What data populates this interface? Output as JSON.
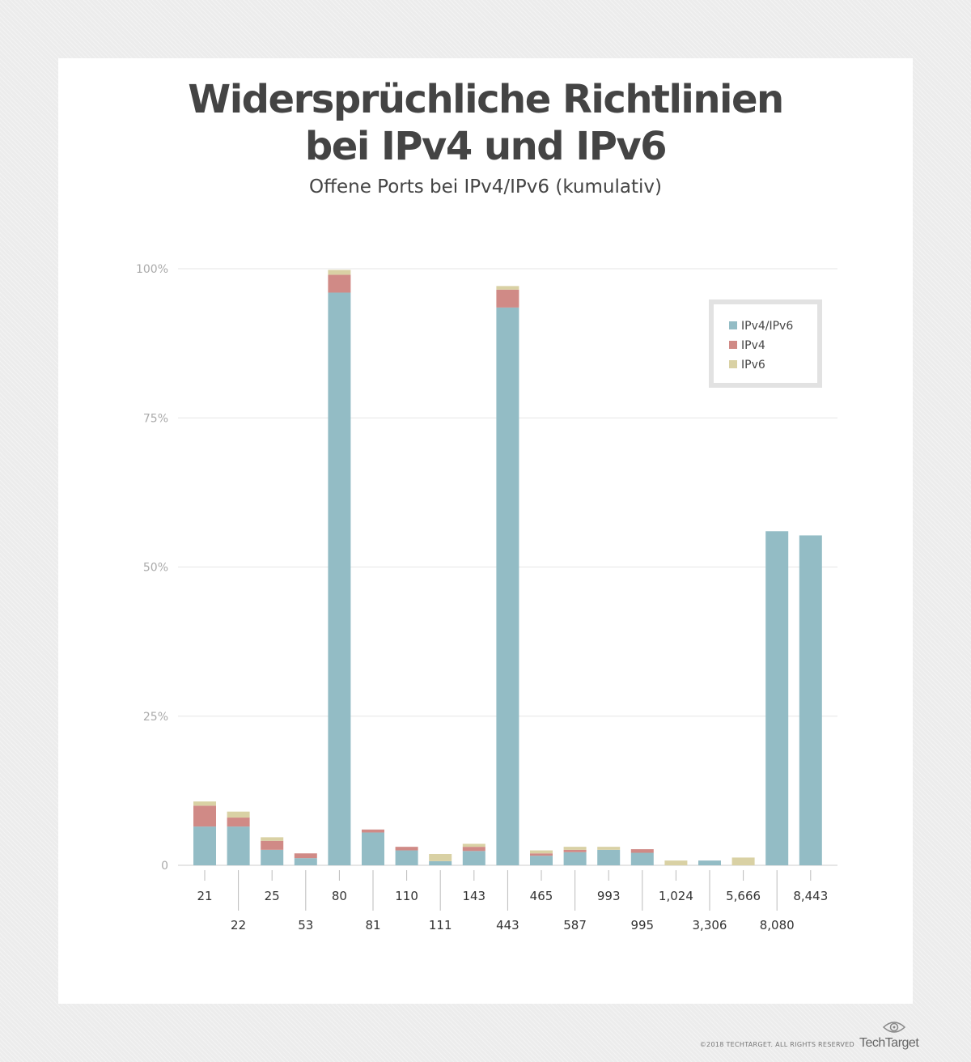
{
  "title_line1": "Widersprüchliche Richtlinien",
  "title_line2": "bei IPv4 und IPv6",
  "subtitle": "Offene Ports bei IPv4/IPv6 (kumulativ)",
  "footer": "©2018 TECHTARGET. ALL RIGHTS RESERVED",
  "brand": "TechTarget",
  "brand_icon": "eye-logo-icon",
  "colors": {
    "ipv4ipv6": "#93bcc5",
    "ipv4": "#d08a86",
    "ipv6": "#d9d1a4",
    "grid": "#e6e6e6",
    "axis": "#cccccc"
  },
  "chart_data": {
    "type": "bar",
    "stacked": true,
    "title": "Widersprüchliche Richtlinien bei IPv4 und IPv6",
    "subtitle": "Offene Ports bei IPv4/IPv6 (kumulativ)",
    "xlabel": "",
    "ylabel": "",
    "ylim": [
      0,
      100
    ],
    "yticks": [
      {
        "value": 0,
        "label": "0"
      },
      {
        "value": 25,
        "label": "25%"
      },
      {
        "value": 50,
        "label": "50%"
      },
      {
        "value": 75,
        "label": "75%"
      },
      {
        "value": 100,
        "label": "100%"
      }
    ],
    "grid": true,
    "legend_position": "top-right",
    "categories": [
      "21",
      "22",
      "25",
      "53",
      "80",
      "81",
      "110",
      "111",
      "143",
      "443",
      "465",
      "587",
      "993",
      "995",
      "1,024",
      "3,306",
      "5,666",
      "8,080",
      "8,443"
    ],
    "series": [
      {
        "name": "IPv4/IPv6",
        "color_key": "ipv4ipv6",
        "values": [
          6.5,
          6.5,
          2.6,
          1.2,
          96.0,
          5.5,
          2.5,
          0.7,
          2.4,
          93.5,
          1.6,
          2.2,
          2.6,
          2.1,
          0.0,
          0.8,
          0.0,
          56.0,
          55.3
        ]
      },
      {
        "name": "IPv4",
        "color_key": "ipv4",
        "values": [
          3.5,
          1.5,
          1.5,
          0.8,
          3.0,
          0.5,
          0.6,
          0.0,
          0.7,
          3.0,
          0.4,
          0.4,
          0.0,
          0.6,
          0.0,
          0.0,
          0.0,
          0.0,
          0.0
        ]
      },
      {
        "name": "IPv6",
        "color_key": "ipv6",
        "values": [
          0.7,
          1.0,
          0.6,
          0.0,
          0.8,
          0.0,
          0.0,
          1.2,
          0.5,
          0.6,
          0.5,
          0.5,
          0.5,
          0.0,
          0.8,
          0.0,
          1.3,
          0.0,
          0.0
        ]
      }
    ]
  }
}
